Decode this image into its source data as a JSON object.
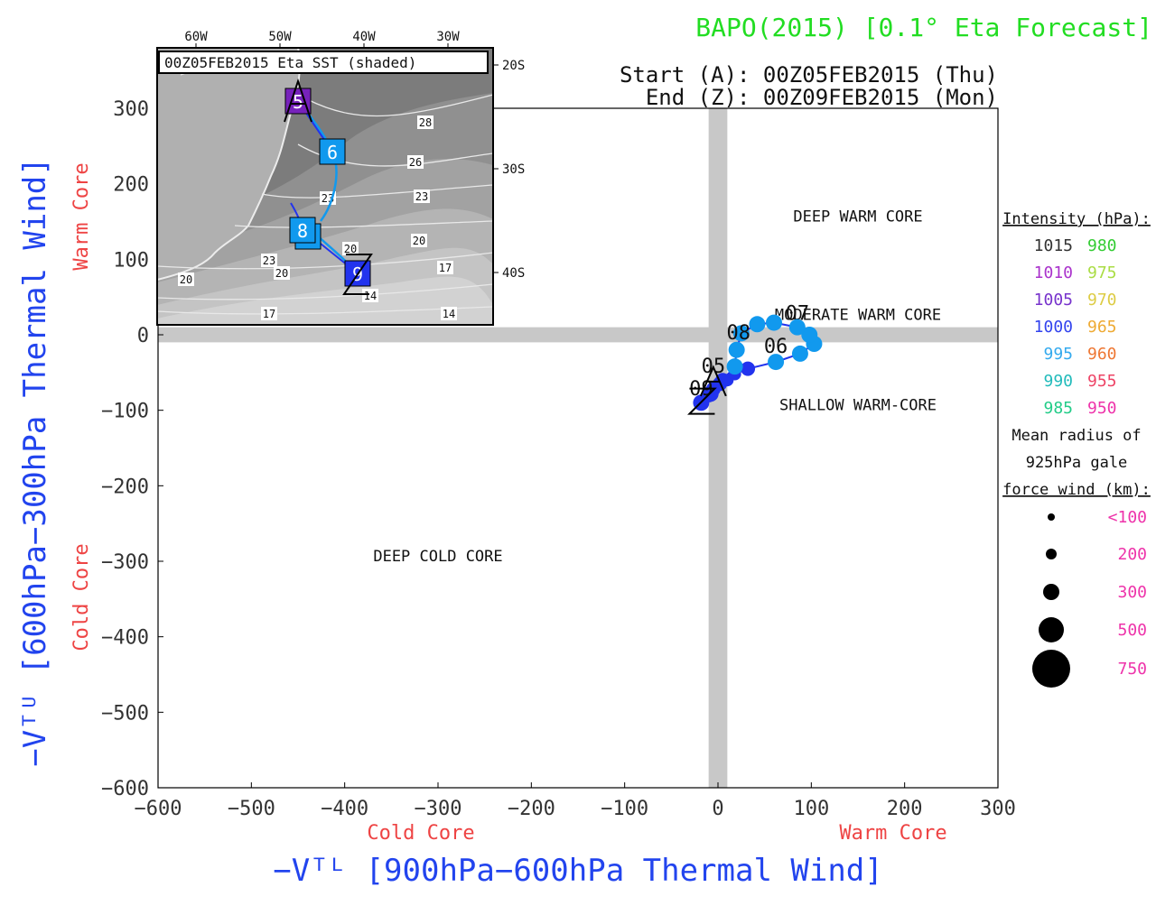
{
  "header": {
    "title": "BAPO(2015) [0.1° Eta Forecast]",
    "start": "Start (A): 00Z05FEB2015 (Thu)",
    "end": "End (Z): 00Z09FEB2015 (Mon)"
  },
  "colors": {
    "title": "#22dd22",
    "axis_title": "#2244ee",
    "core_label": "#ee4444",
    "grid_band": "#c8c8c8",
    "track_dark": "#2233ee",
    "track_light": "#1199ee"
  },
  "chart_data": {
    "type": "scatter",
    "xlabel": "−Vᵀᴸ [900hPa−600hPa Thermal Wind]",
    "ylabel": "−Vᵀᵁ [600hPa−300hPa Thermal Wind]",
    "xlim": [
      -600,
      300
    ],
    "ylim": [
      -600,
      300
    ],
    "xticks": [
      -600,
      -500,
      -400,
      -300,
      -200,
      -100,
      0,
      100,
      200,
      300
    ],
    "yticks": [
      300,
      200,
      100,
      0,
      -100,
      -200,
      -300,
      -400,
      -500,
      -600
    ],
    "xtick_labels": [
      "−600",
      "−500",
      "−400",
      "−300",
      "−200",
      "−100",
      "0",
      "100",
      "200",
      "300"
    ],
    "ytick_labels": [
      "300",
      "200",
      "100",
      "0",
      "−100",
      "−200",
      "−300",
      "−400",
      "−500",
      "−600"
    ],
    "x_cold_label": "Cold Core",
    "x_warm_label": "Warm Core",
    "y_cold_label": "Cold Core",
    "y_warm_label": "Warm Core",
    "regions": [
      {
        "label": "DEEP WARM CORE",
        "x": 150,
        "y": 150
      },
      {
        "label": "MODERATE WARM CORE",
        "x": 150,
        "y": 20
      },
      {
        "label": "SHALLOW WARM-CORE",
        "x": 150,
        "y": -100
      },
      {
        "label": "DEEP COLD CORE",
        "x": -300,
        "y": -300
      }
    ],
    "track": [
      {
        "x": -10,
        "y": -80,
        "tone": "dark",
        "r": 8
      },
      {
        "x": -5,
        "y": -72,
        "tone": "dark",
        "r": 8
      },
      {
        "x": 2,
        "y": -65,
        "tone": "dark",
        "r": 8
      },
      {
        "x": 10,
        "y": -60,
        "tone": "dark",
        "r": 7
      },
      {
        "x": 18,
        "y": -52,
        "tone": "dark",
        "r": 7
      },
      {
        "x": 32,
        "y": -45,
        "tone": "dark",
        "r": 8
      },
      {
        "x": 62,
        "y": -36,
        "tone": "light",
        "r": 9
      },
      {
        "x": 88,
        "y": -25,
        "tone": "light",
        "r": 9
      },
      {
        "x": 103,
        "y": -12,
        "tone": "light",
        "r": 9
      },
      {
        "x": 98,
        "y": 0,
        "tone": "light",
        "r": 9
      },
      {
        "x": 85,
        "y": 10,
        "tone": "light",
        "r": 9
      },
      {
        "x": 60,
        "y": 16,
        "tone": "light",
        "r": 9
      },
      {
        "x": 42,
        "y": 14,
        "tone": "light",
        "r": 9
      },
      {
        "x": 25,
        "y": 2,
        "tone": "light",
        "r": 9
      },
      {
        "x": 20,
        "y": -20,
        "tone": "light",
        "r": 9
      },
      {
        "x": 18,
        "y": -42,
        "tone": "light",
        "r": 9
      },
      {
        "x": 5,
        "y": -60,
        "tone": "dark",
        "r": 8
      },
      {
        "x": -8,
        "y": -78,
        "tone": "dark",
        "r": 9
      },
      {
        "x": -18,
        "y": -90,
        "tone": "dark",
        "r": 9
      }
    ],
    "day_labels": [
      {
        "text": "05",
        "x": -5,
        "y": -50
      },
      {
        "text": "06",
        "x": 62,
        "y": -24
      },
      {
        "text": "07",
        "x": 85,
        "y": 20
      },
      {
        "text": "08",
        "x": 22,
        "y": -6
      },
      {
        "text": "09",
        "x": -18,
        "y": -80
      }
    ],
    "start_marker": {
      "text": "A",
      "x": -5,
      "y": -62
    },
    "end_marker": {
      "text": "Z",
      "x": -17,
      "y": -88
    }
  },
  "inset": {
    "title": "00Z05FEB2015 Eta SST (shaded)",
    "lon_labels": [
      "60W",
      "50W",
      "40W",
      "30W"
    ],
    "lat_labels": [
      "20S",
      "30S",
      "40S"
    ],
    "contour_labels": [
      {
        "text": "28",
        "x": 471,
        "y": 137
      },
      {
        "text": "26",
        "x": 460,
        "y": 181
      },
      {
        "text": "23",
        "x": 467,
        "y": 219
      },
      {
        "text": "23",
        "x": 363,
        "y": 221
      },
      {
        "text": "20",
        "x": 464,
        "y": 268
      },
      {
        "text": "20",
        "x": 388,
        "y": 277
      },
      {
        "text": "17",
        "x": 493,
        "y": 298
      },
      {
        "text": "23",
        "x": 298,
        "y": 290
      },
      {
        "text": "20",
        "x": 312,
        "y": 304
      },
      {
        "text": "20",
        "x": 206,
        "y": 311
      },
      {
        "text": "14",
        "x": 410,
        "y": 329
      },
      {
        "text": "17",
        "x": 298,
        "y": 349
      },
      {
        "text": "14",
        "x": 497,
        "y": 349
      }
    ],
    "boxes": [
      {
        "text": "5",
        "color": "#7722bb",
        "x": 330,
        "y": 112
      },
      {
        "text": "6",
        "color": "#1199ee",
        "x": 368,
        "y": 168
      },
      {
        "text": "8",
        "color": "#1199ee",
        "x": 335,
        "y": 255
      },
      {
        "text": "9",
        "color": "#2233ee",
        "x": 396,
        "y": 303
      }
    ],
    "start_marker": "A",
    "end_marker": "Z"
  },
  "legend": {
    "intensity_title": "Intensity (hPa):",
    "intensity": [
      {
        "left": "1015",
        "left_color": "#333333",
        "right": "980",
        "right_color": "#33cc33"
      },
      {
        "left": "1010",
        "left_color": "#aa33cc",
        "right": "975",
        "right_color": "#aadd44"
      },
      {
        "left": "1005",
        "left_color": "#7733cc",
        "right": "970",
        "right_color": "#ddcc44"
      },
      {
        "left": "1000",
        "left_color": "#3344ee",
        "right": "965",
        "right_color": "#eeaa33"
      },
      {
        "left": "995",
        "left_color": "#33aaee",
        "right": "960",
        "right_color": "#ee7733"
      },
      {
        "left": "990",
        "left_color": "#22bbbb",
        "right": "955",
        "right_color": "#ee4466"
      },
      {
        "left": "985",
        "left_color": "#22cc88",
        "right": "950",
        "right_color": "#ee33aa"
      }
    ],
    "radius_title_1": "Mean radius of",
    "radius_title_2": "925hPa gale",
    "radius_title_3": "force wind (km):",
    "radius": [
      {
        "label": "<100",
        "r": 4
      },
      {
        "label": "200",
        "r": 6
      },
      {
        "label": "300",
        "r": 9
      },
      {
        "label": "500",
        "r": 14
      },
      {
        "label": "750",
        "r": 21
      }
    ],
    "radius_label_color": "#ee33aa"
  }
}
